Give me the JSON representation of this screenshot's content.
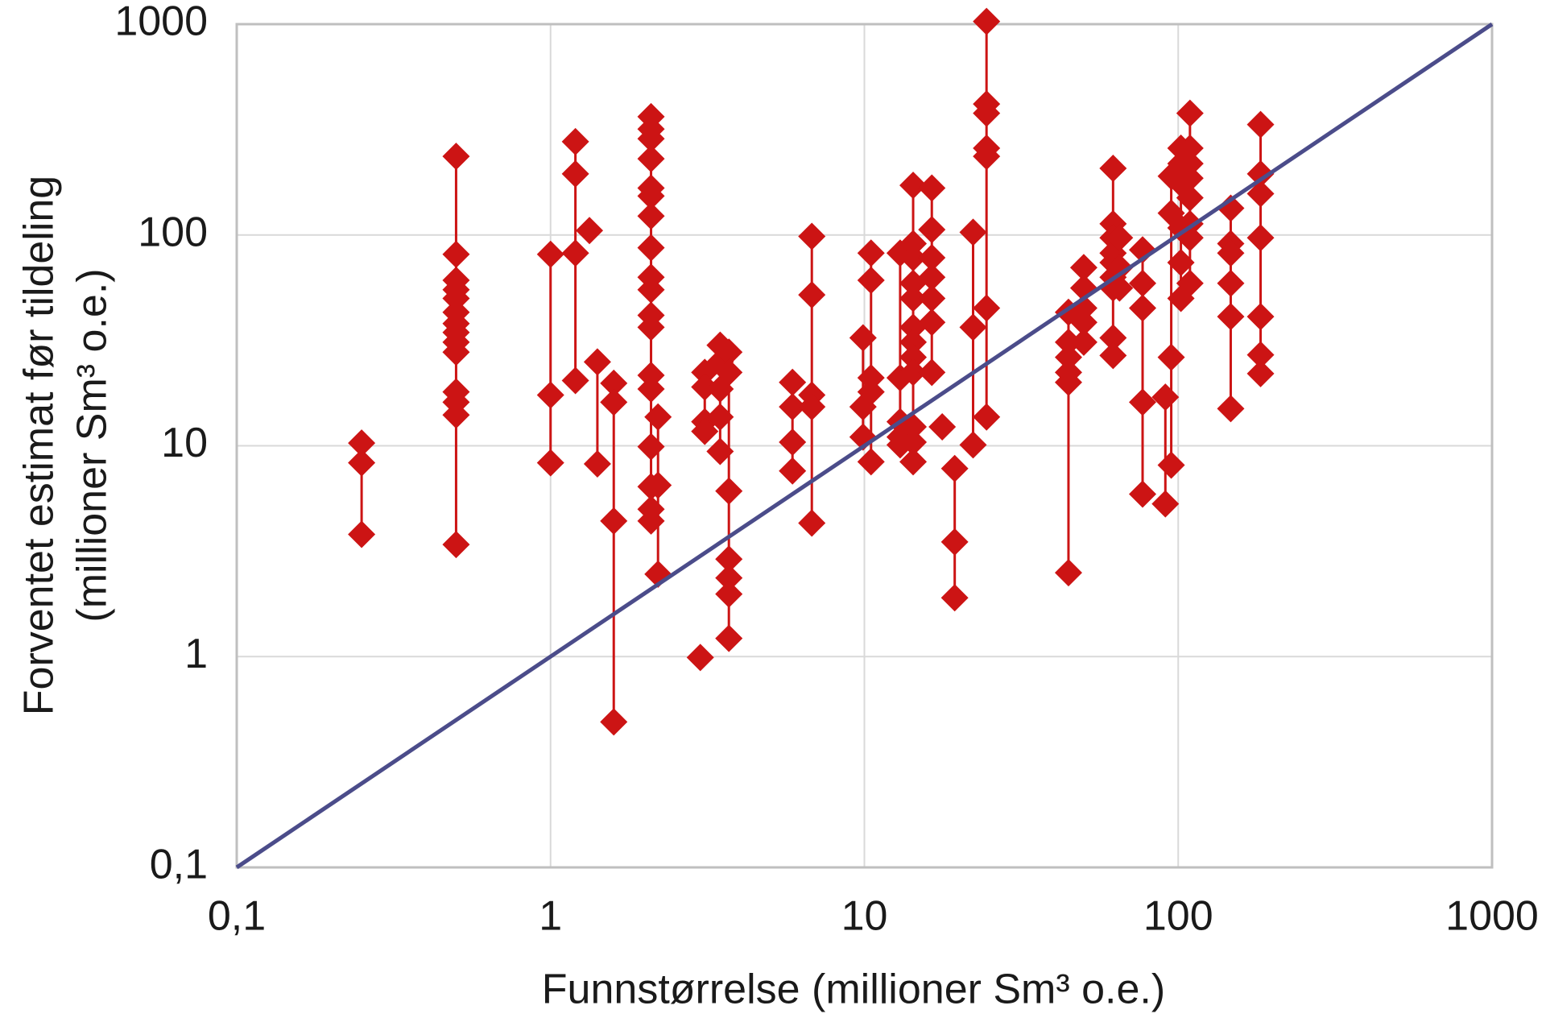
{
  "chart_data": {
    "type": "scatter",
    "x_label": "Funnstørrelse (millioner Sm³ o.e.)",
    "y_label": [
      "Forventet estimat før tildeling",
      "(millioner Sm³ o.e.)"
    ],
    "xscale": "log",
    "yscale": "log",
    "grid": true,
    "xlim": [
      0.1,
      1000
    ],
    "ylim": [
      0.1,
      1000
    ],
    "xticks": [
      {
        "value": 0.1,
        "label": "0,1"
      },
      1,
      10,
      100,
      1000
    ],
    "yticks": [
      {
        "value": 0.1,
        "label": "0,1"
      },
      1,
      10,
      100,
      1000
    ],
    "series": [
      {
        "type": "scatter",
        "marker": "diamond",
        "color": "#cc1414",
        "connect_same_x": true,
        "x": [
          0.25,
          0.25,
          0.25,
          0.5,
          0.5,
          0.5,
          0.5,
          0.5,
          0.5,
          0.5,
          0.5,
          0.5,
          0.5,
          0.5,
          0.5,
          0.5,
          0.5,
          1,
          1,
          1,
          1.2,
          1.2,
          1.2,
          1.2,
          1.33,
          1.41,
          1.41,
          1.59,
          1.59,
          1.59,
          1.59,
          2.09,
          2.09,
          2.09,
          2.09,
          2.09,
          2.09,
          2.09,
          2.09,
          2.09,
          2.09,
          2.09,
          2.09,
          2.09,
          2.09,
          2.09,
          2.09,
          2.09,
          2.09,
          2.2,
          2.2,
          2.2,
          3,
          3.1,
          3.1,
          3.1,
          3.1,
          3.47,
          3.47,
          3.47,
          3.47,
          3.47,
          3.7,
          3.7,
          3.7,
          3.7,
          3.7,
          3.7,
          3.7,
          5.9,
          5.9,
          5.9,
          5.9,
          6.8,
          6.8,
          6.8,
          6.8,
          6.8,
          9.9,
          9.9,
          9.9,
          10.5,
          10.5,
          10.5,
          10.5,
          10.5,
          13,
          13,
          13,
          13,
          13,
          14.3,
          14.3,
          14.3,
          14.3,
          14.3,
          14.3,
          14.3,
          14.3,
          14.3,
          14.3,
          14.3,
          14.3,
          16.4,
          16.4,
          16.4,
          16.4,
          16.4,
          16.4,
          16.4,
          17.7,
          19.4,
          19.4,
          19.4,
          22.2,
          22.2,
          22.2,
          24.5,
          24.5,
          24.5,
          24.5,
          24.5,
          24.5,
          24.5,
          44.7,
          44.7,
          44.7,
          44.7,
          44.7,
          44.7,
          50,
          50,
          50,
          50,
          50,
          62,
          62,
          62,
          62,
          62,
          62,
          62,
          62,
          62,
          65,
          65,
          65,
          77,
          77,
          77,
          77,
          77,
          91,
          91,
          95,
          95,
          95,
          95,
          102,
          102,
          102,
          102,
          102,
          102,
          109,
          109,
          109,
          109,
          109,
          109,
          109,
          109,
          147,
          147,
          147,
          147,
          147,
          147,
          183,
          183,
          183,
          183,
          183,
          183,
          183
        ],
        "y": [
          10.3,
          8.3,
          3.8,
          236,
          81,
          61,
          55,
          50,
          43,
          38,
          34.5,
          31,
          27.8,
          18,
          16.1,
          14,
          3.4,
          81,
          17.4,
          8.3,
          277,
          195,
          82,
          20.4,
          105,
          25,
          8.2,
          19.8,
          16.1,
          4.4,
          0.49,
          364,
          318,
          286,
          230,
          167,
          153,
          123,
          87,
          63,
          55,
          41.6,
          36.5,
          21.6,
          18.6,
          9.9,
          6.4,
          5,
          4.4,
          13.7,
          6.5,
          2.46,
          0.99,
          22.3,
          19,
          13,
          11.7,
          30,
          25,
          18.6,
          13.7,
          9.4,
          27.8,
          22.3,
          6.1,
          2.9,
          2.36,
          1.98,
          1.22,
          20,
          15.3,
          10.4,
          7.6,
          98.5,
          52,
          17.4,
          15.3,
          4.3,
          32.5,
          15.3,
          11,
          82,
          61,
          21,
          18,
          8.4,
          82,
          21,
          13,
          11,
          10.1,
          172,
          91,
          78,
          59,
          50,
          36.5,
          31,
          26.3,
          22.3,
          12.3,
          10.4,
          8.4,
          167,
          106,
          78,
          63,
          50,
          38.5,
          22.3,
          12.3,
          7.8,
          3.5,
          1.9,
          103,
          36.5,
          10.1,
          1030,
          418,
          378,
          258,
          236,
          45,
          13.7,
          43,
          31,
          26.3,
          22.3,
          20,
          2.5,
          70,
          56,
          45,
          38.5,
          31,
          207,
          113,
          97,
          82,
          74,
          63,
          56,
          32.5,
          26.8,
          97,
          70,
          56,
          85,
          59,
          45,
          16.1,
          5.9,
          17,
          5.3,
          190,
          127,
          26.3,
          8.1,
          258,
          218,
          175,
          108,
          74,
          50,
          378,
          258,
          218,
          186,
          150,
          113,
          97,
          59,
          134,
          91,
          82,
          59,
          41,
          15,
          334,
          195,
          157,
          97,
          41,
          27,
          22
        ]
      },
      {
        "type": "line",
        "color": "#4b4c8a",
        "x": [
          0.1,
          1000
        ],
        "y": [
          0.1,
          1000
        ]
      }
    ]
  }
}
